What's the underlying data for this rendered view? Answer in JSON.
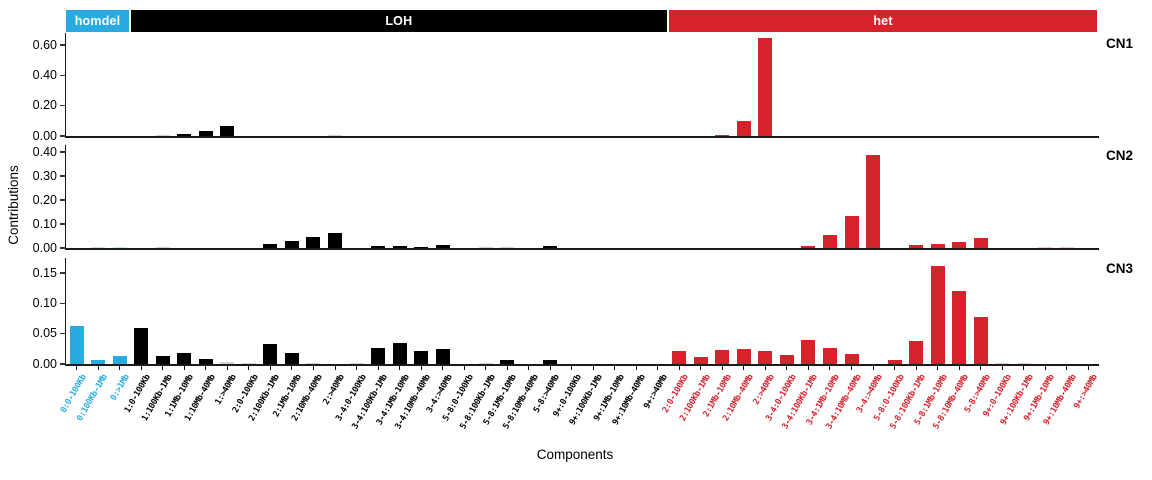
{
  "chart_data": {
    "type": "bar",
    "title": "",
    "xlabel": "Components",
    "ylabel": "Contributions",
    "legend_position": "top-bands",
    "grid": false,
    "groups": [
      {
        "label": "homdel",
        "color": "#29ABE2",
        "light_color": "#bfe7f7",
        "count": 3
      },
      {
        "label": "LOH",
        "color": "#000000",
        "light_color": "#d4d4d4",
        "count": 25
      },
      {
        "label": "het",
        "color": "#D7222C",
        "light_color": "#f6c9cc",
        "count": 20
      }
    ],
    "categories": [
      "0:0-100Kb",
      "0:100Kb-1Mb",
      "0:>1Mb",
      "1:0-100Kb",
      "1:100Kb-1Mb",
      "1:1Mb-10Mb",
      "1:10Mb-40Mb",
      "1:>40Mb",
      "2:0-100Kb",
      "2:100Kb-1Mb",
      "2:1Mb-10Mb",
      "2:10Mb-40Mb",
      "2:>40Mb",
      "3-4:0-100Kb",
      "3-4:100Kb-1Mb",
      "3-4:1Mb-10Mb",
      "3-4:10Mb-40Mb",
      "3-4:>40Mb",
      "5-8:0-100Kb",
      "5-8:100Kb-1Mb",
      "5-8:1Mb-10Mb",
      "5-8:10Mb-40Mb",
      "5-8:>40Mb",
      "9+:0-100Kb",
      "9+:100Kb-1Mb",
      "9+:1Mb-10Mb",
      "9+:10Mb-40Mb",
      "9+:>40Mb",
      "2:0-100Kb",
      "2:100Kb-1Mb",
      "2:1Mb-10Mb",
      "2:10Mb-40Mb",
      "2:>40Mb",
      "3-4:0-100Kb",
      "3-4:100Kb-1Mb",
      "3-4:1Mb-10Mb",
      "3-4:10Mb-40Mb",
      "3-4:>40Mb",
      "5-8:0-100Kb",
      "5-8:100Kb-1Mb",
      "5-8:1Mb-10Mb",
      "5-8:10Mb-40Mb",
      "5-8:>40Mb",
      "9+:0-100Kb",
      "9+:100Kb-1Mb",
      "9+:1Mb-10Mb",
      "9+:10Mb-40Mb",
      "9+:>40Mb"
    ],
    "category_group_index": [
      0,
      0,
      0,
      1,
      1,
      1,
      1,
      1,
      1,
      1,
      1,
      1,
      1,
      1,
      1,
      1,
      1,
      1,
      1,
      1,
      1,
      1,
      1,
      1,
      1,
      1,
      1,
      1,
      2,
      2,
      2,
      2,
      2,
      2,
      2,
      2,
      2,
      2,
      2,
      2,
      2,
      2,
      2,
      2,
      2,
      2,
      2,
      2
    ],
    "panels": [
      {
        "name": "CN1",
        "ymax": 0.68,
        "yticks": [
          0.0,
          0.2,
          0.4,
          0.6
        ],
        "ytick_labels": [
          "0.00",
          "0.20",
          "0.40",
          "0.60"
        ],
        "values": [
          0,
          0,
          0,
          0,
          0.004,
          0.013,
          0.035,
          0.065,
          0,
          0,
          0,
          0,
          0.004,
          0,
          0,
          0,
          0,
          0,
          0,
          0,
          0,
          0,
          0,
          0,
          0,
          0,
          0,
          0,
          0,
          0,
          0.008,
          0.1,
          0.65,
          0,
          0,
          0,
          0,
          0,
          0,
          0,
          0,
          0,
          0,
          0,
          0,
          0,
          0,
          0
        ]
      },
      {
        "name": "CN2",
        "ymax": 0.43,
        "yticks": [
          0.0,
          0.1,
          0.2,
          0.3,
          0.4
        ],
        "ytick_labels": [
          "0.00",
          "0.10",
          "0.20",
          "0.30",
          "0.40"
        ],
        "values": [
          0,
          0.005,
          0.003,
          0,
          0.003,
          0,
          0,
          0,
          0,
          0.015,
          0.03,
          0.047,
          0.062,
          0,
          0.01,
          0.008,
          0.006,
          0.011,
          0,
          0.002,
          0.002,
          0,
          0.007,
          0,
          0,
          0,
          0,
          0,
          0,
          0,
          0,
          0,
          0,
          0,
          0.008,
          0.055,
          0.135,
          0.39,
          0,
          0.013,
          0.018,
          0.024,
          0.04,
          0,
          0,
          0.002,
          0.002,
          0
        ]
      },
      {
        "name": "CN3",
        "ymax": 0.175,
        "yticks": [
          0.0,
          0.05,
          0.1,
          0.15
        ],
        "ytick_labels": [
          "0.00",
          "0.05",
          "0.10",
          "0.15"
        ],
        "values": [
          0.063,
          0.006,
          0.013,
          0.06,
          0.013,
          0.018,
          0.008,
          0.003,
          0.002,
          0.033,
          0.018,
          0.002,
          0,
          0.002,
          0.026,
          0.035,
          0.022,
          0.025,
          0,
          0.002,
          0.007,
          0,
          0.007,
          0,
          0,
          0,
          0,
          0,
          0.021,
          0.011,
          0.023,
          0.024,
          0.022,
          0.015,
          0.04,
          0.026,
          0.017,
          0,
          0.006,
          0.038,
          0.161,
          0.121,
          0.077,
          0.002,
          0.002,
          0,
          0,
          0
        ]
      }
    ]
  }
}
